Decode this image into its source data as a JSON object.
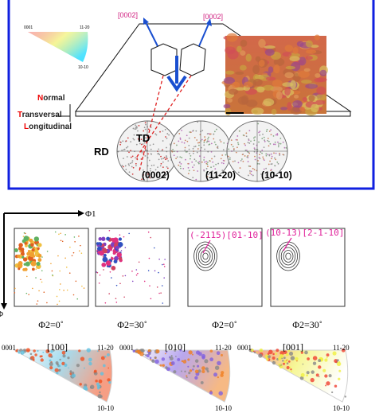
{
  "schematic": {
    "ipf_legend": {
      "corners": [
        "0001",
        "11-20",
        "10-10"
      ]
    },
    "directions": [
      "[0002]",
      "[0002]"
    ],
    "sample_axes": [
      "Normal",
      "Transversal",
      "Longitudinal"
    ],
    "pole_axes": [
      "TD",
      "RD"
    ],
    "pole_figures": [
      "(0002)",
      "(11-20)",
      "(10-10)"
    ]
  },
  "odf": {
    "axis_x": "Φ1",
    "axis_y": "Φ",
    "sections": [
      "Φ2=0˚",
      "Φ2=30˚",
      "Φ2=0˚",
      "Φ2=30˚"
    ],
    "annotations": [
      "(-2115)[01-10]",
      "(10-13)[2-1-10]"
    ]
  },
  "ipf": [
    {
      "direction": "[100]",
      "corners": [
        "0001",
        "11-20",
        "10-10"
      ]
    },
    {
      "direction": "[010]",
      "corners": [
        "0001",
        "11-20",
        "10-10"
      ]
    },
    {
      "direction": "[001]",
      "corners": [
        "0001",
        "11-20",
        "10-10"
      ]
    }
  ]
}
